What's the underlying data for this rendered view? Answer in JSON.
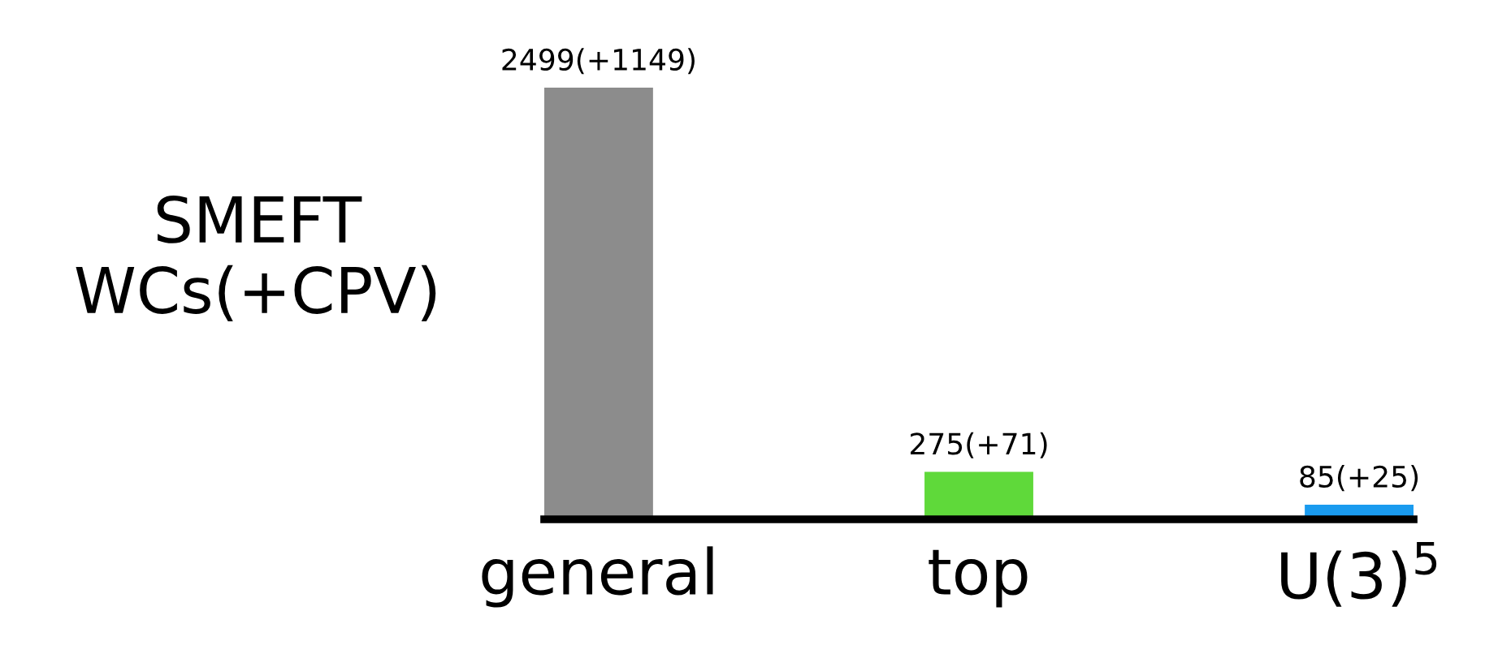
{
  "chart_data": {
    "type": "bar",
    "ylabel": "SMEFT\nWCs(+CPV)",
    "categories": [
      "general",
      "top",
      "U(3)$^{5}$"
    ],
    "values": [
      2499,
      275,
      85
    ],
    "colors": [
      "#8c8c8c",
      "#5fd93a",
      "#1a9bef"
    ],
    "value_labels": [
      "2499(+1149)",
      "275(+71)",
      "85(+25)"
    ],
    "grid": false,
    "legend": false
  }
}
